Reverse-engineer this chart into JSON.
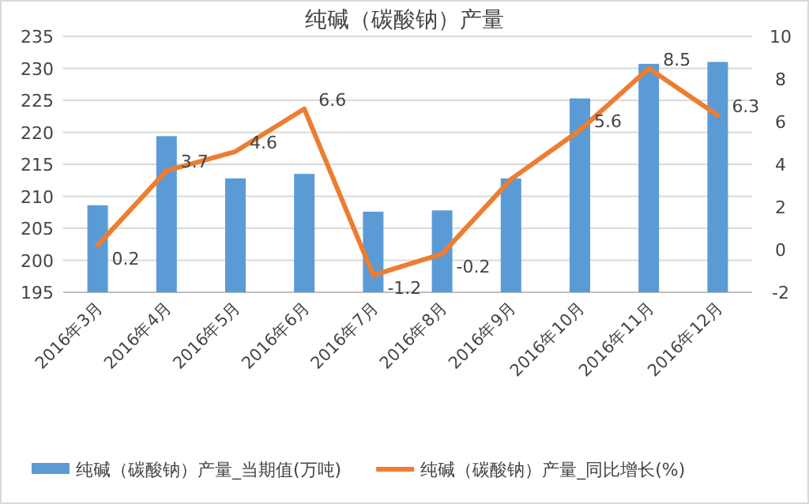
{
  "chart_data": {
    "type": "bar",
    "title": "纯碱（碳酸钠）产量",
    "categories": [
      "2016年3月",
      "2016年4月",
      "2016年5月",
      "2016年6月",
      "2016年7月",
      "2016年8月",
      "2016年9月",
      "2016年10月",
      "2016年11月",
      "2016年12月"
    ],
    "series": [
      {
        "name": "纯碱（碳酸钠）产量_当期值(万吨)",
        "color": "#5b9bd5",
        "values": [
          208.6,
          219.4,
          212.8,
          213.5,
          207.6,
          207.8,
          212.8,
          225.3,
          230.7,
          231.0
        ]
      },
      {
        "name": "纯碱（碳酸钠）产量_同比增长(%)",
        "type": "line",
        "axis": "y2",
        "color": "#ed7d31",
        "values": [
          0.2,
          3.7,
          4.6,
          6.6,
          -1.2,
          -0.2,
          3.3,
          5.6,
          8.5,
          6.3
        ],
        "value_labels": [
          "0.2",
          "3.7",
          "4.6",
          "6.6",
          "-1.2",
          "-0.2",
          null,
          "5.6",
          "8.5",
          "6.3"
        ]
      }
    ],
    "ylim": [
      195,
      235
    ],
    "yticks": [
      195,
      200,
      205,
      210,
      215,
      220,
      225,
      230,
      235
    ],
    "y2lim": [
      -2,
      10
    ],
    "y2ticks": [
      -2,
      0,
      2,
      4,
      6,
      8,
      10
    ],
    "grid": "y",
    "legend": "bottom"
  }
}
